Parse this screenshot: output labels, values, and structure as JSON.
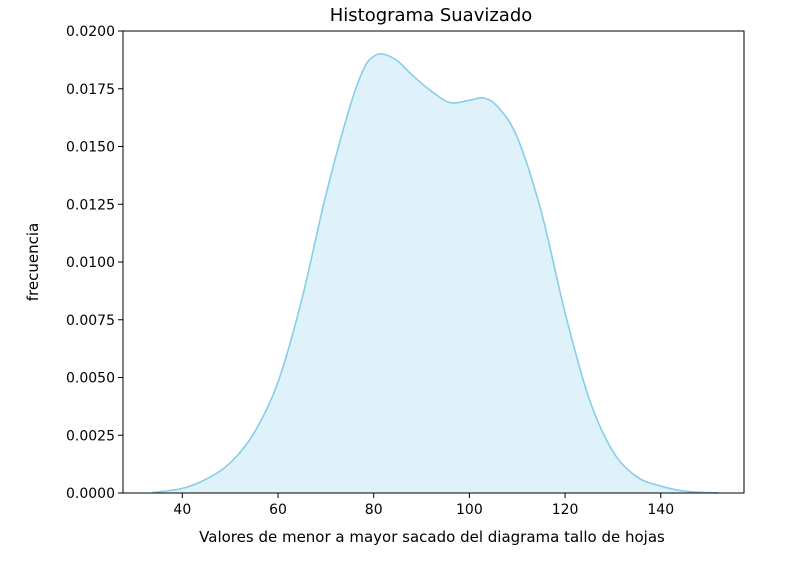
{
  "chart_data": {
    "type": "area",
    "title": "Histograma Suavizado",
    "xlabel": "Valores de menor a mayor sacado del  diagrama tallo de hojas",
    "ylabel": "frecuencia",
    "xlim": [
      27.6,
      157.4
    ],
    "ylim": [
      0,
      0.02
    ],
    "xticks": [
      40,
      60,
      80,
      100,
      120,
      140
    ],
    "yticks": [
      0.0,
      0.0025,
      0.005,
      0.0075,
      0.01,
      0.0125,
      0.015,
      0.0175,
      0.02
    ],
    "ytick_labels": [
      "0.0000",
      "0.0025",
      "0.0050",
      "0.0075",
      "0.0100",
      "0.0125",
      "0.0150",
      "0.0175",
      "0.0200"
    ],
    "grid": false,
    "legend": "none",
    "line_color": "#87CEEB",
    "fill_color": "#87CEEB",
    "fill_opacity": 0.27,
    "series": [
      {
        "x": [
          33.8,
          40,
          45,
          50,
          55,
          60,
          65,
          70,
          75,
          78,
          80,
          82,
          85,
          88,
          92,
          96,
          100,
          103,
          106,
          110,
          115,
          120,
          125,
          130,
          135,
          140,
          145,
          152
        ],
        "y": [
          2e-05,
          0.0002,
          0.0006,
          0.0013,
          0.0026,
          0.0048,
          0.0084,
          0.0129,
          0.0167,
          0.0184,
          0.0189,
          0.019,
          0.0187,
          0.0181,
          0.0174,
          0.0169,
          0.017,
          0.0171,
          0.0167,
          0.0154,
          0.0122,
          0.0078,
          0.0041,
          0.0018,
          0.0007,
          0.0003,
          8e-05,
          0.0
        ]
      }
    ]
  }
}
